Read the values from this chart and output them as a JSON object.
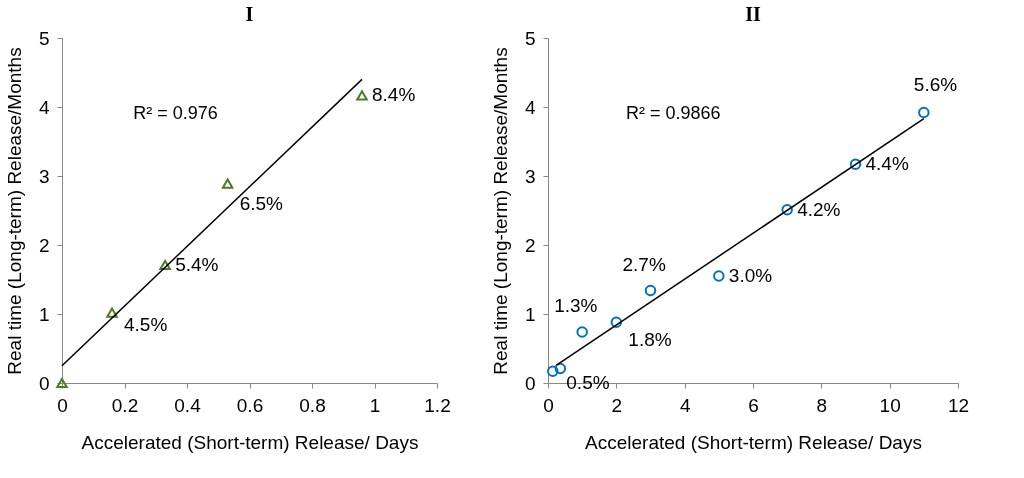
{
  "chart_data": [
    {
      "type": "scatter",
      "title": "I",
      "xlabel": "Accelerated (Short-term) Release/ Days",
      "ylabel": "Real time (Long-term) Release/Months",
      "xlim": [
        0,
        1.2
      ],
      "xticks": [
        0,
        0.2,
        0.4,
        0.6,
        0.8,
        1,
        1.2
      ],
      "ylim": [
        0,
        5
      ],
      "yticks": [
        0,
        1,
        2,
        3,
        4,
        5
      ],
      "grid": false,
      "legend": false,
      "annotations": [
        "R² = 0.976",
        {
          "text": "4.5%",
          "x": 0.16,
          "y": 1.02
        },
        {
          "text": "5.4%",
          "x": 0.33,
          "y": 1.71
        },
        {
          "text": "6.5%",
          "x": 0.53,
          "y": 2.89
        },
        {
          "text": "8.4%",
          "x": 0.96,
          "y": 4.17
        }
      ],
      "series": [
        {
          "marker": "triangle",
          "color": "#4f7a28",
          "x": [
            0,
            0.16,
            0.33,
            0.53,
            0.96
          ],
          "values": [
            0,
            1.02,
            1.71,
            2.89,
            4.17
          ]
        },
        {
          "type": "line",
          "line_style": "solid",
          "color": "#000000",
          "x": [
            0,
            0.96
          ],
          "values": [
            0.25,
            4.4
          ]
        }
      ]
    },
    {
      "type": "scatter",
      "title": "II",
      "xlabel": "Accelerated (Short-term) Release/ Days",
      "ylabel": "Real time (Long-term) Release/Months",
      "xlim": [
        0,
        12
      ],
      "xticks": [
        0,
        2,
        4,
        6,
        8,
        10,
        12
      ],
      "ylim": [
        0,
        5
      ],
      "yticks": [
        0,
        1,
        2,
        3,
        4,
        5
      ],
      "grid": false,
      "legend": false,
      "annotations": [
        "R² = 0.9866",
        {
          "text": "0.5%",
          "x": 0.36,
          "y": 0.21
        },
        {
          "text": "1.3%",
          "x": 1,
          "y": 0.74
        },
        {
          "text": "1.8%",
          "x": 2,
          "y": 0.88
        },
        {
          "text": "2.7%",
          "x": 3,
          "y": 1.34
        },
        {
          "text": "3.0%",
          "x": 5,
          "y": 1.55
        },
        {
          "text": "4.2%",
          "x": 7,
          "y": 2.51
        },
        {
          "text": "4.4%",
          "x": 9,
          "y": 3.17
        },
        {
          "text": "5.6%",
          "x": 11,
          "y": 3.92
        }
      ],
      "series": [
        {
          "marker": "circle",
          "color": "#0070c0",
          "x": [
            0.14,
            0.36,
            1,
            2,
            3,
            5,
            7,
            9,
            11
          ],
          "values": [
            0.17,
            0.21,
            0.74,
            0.88,
            1.34,
            1.55,
            2.51,
            3.17,
            3.92
          ]
        },
        {
          "type": "line",
          "line_style": "solid",
          "color": "#000000",
          "x": [
            0.25,
            11
          ],
          "values": [
            0.26,
            3.83
          ]
        }
      ]
    }
  ]
}
